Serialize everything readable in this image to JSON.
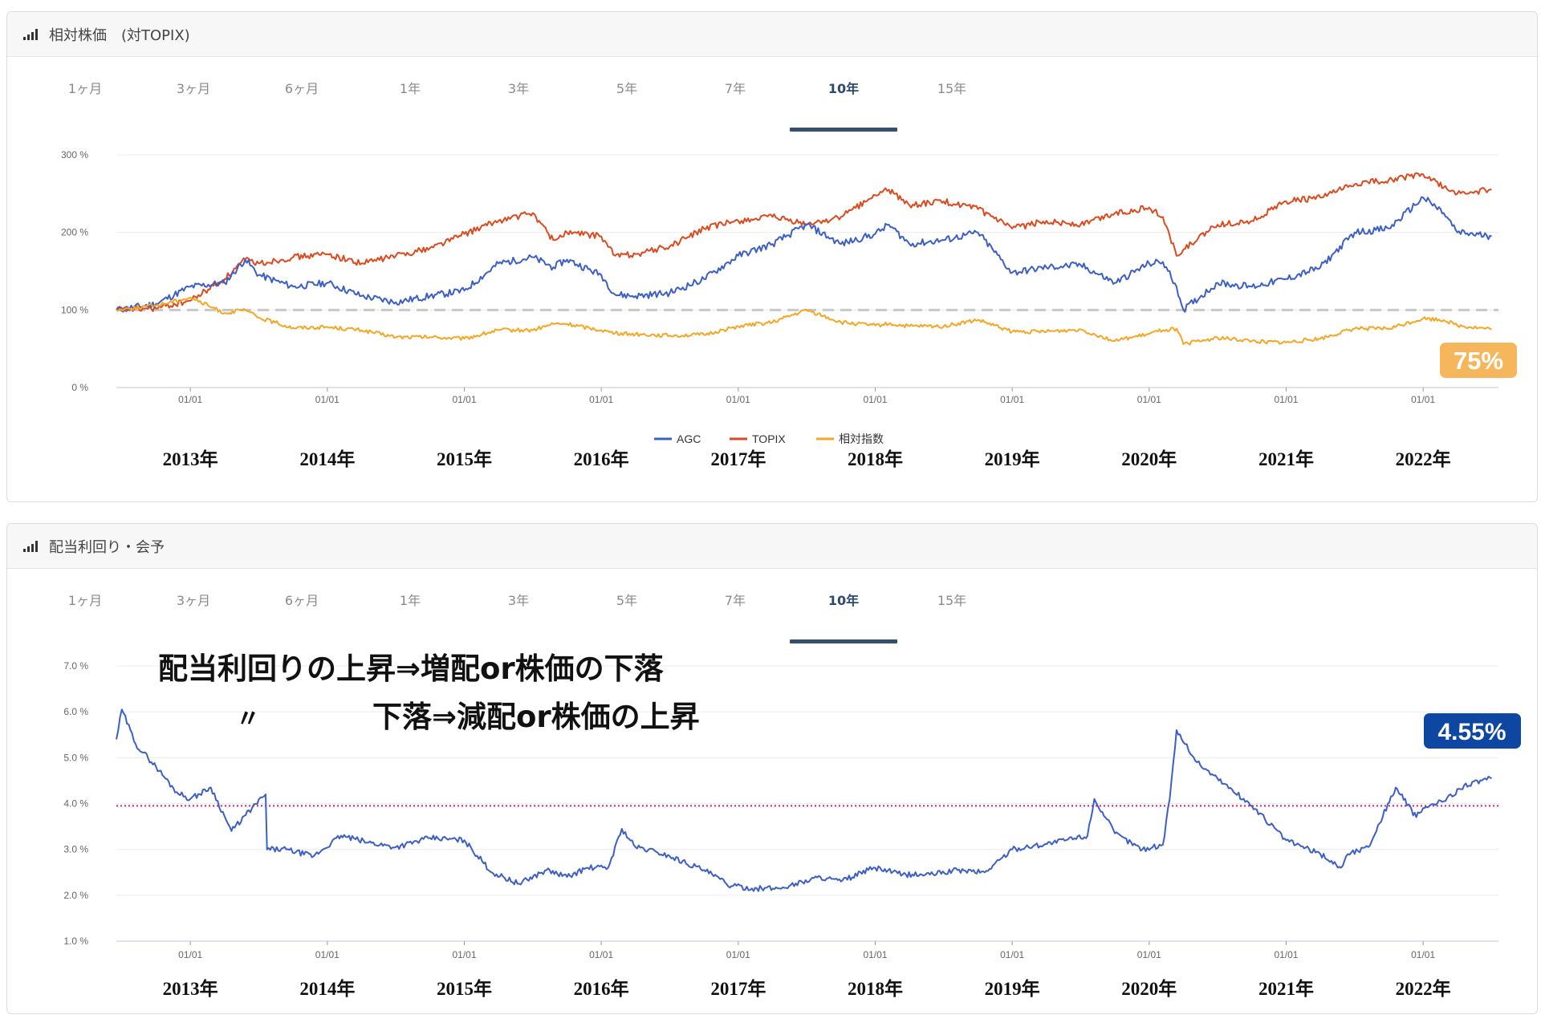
{
  "panel1": {
    "title": "相対株価　(対TOPIX)",
    "tabs": [
      "1ヶ月",
      "3ヶ月",
      "6ヶ月",
      "1年",
      "3年",
      "5年",
      "7年",
      "10年",
      "15年"
    ],
    "active_tab": 7,
    "badge": "75%",
    "badge_color": "#f6b65c"
  },
  "panel2": {
    "title": "配当利回り・会予",
    "tabs": [
      "1ヶ月",
      "3ヶ月",
      "6ヶ月",
      "1年",
      "3年",
      "5年",
      "7年",
      "10年",
      "15年"
    ],
    "active_tab": 7,
    "badge": "4.55%",
    "badge_color": "#0d47a1",
    "annotation_line1": "配当利回りの上昇⇒増配or株価の下落",
    "annotation_line2_mark": "〃",
    "annotation_line2": "下落⇒減配or株価の上昇"
  },
  "colors": {
    "agc": "#3b5fc7",
    "topix": "#dd4a1f",
    "relative": "#f5a623",
    "yield": "#3b5fc7",
    "reference_line": "#e0197c"
  },
  "chart_data": [
    {
      "type": "line",
      "title": "相対株価　(対TOPIX)",
      "x_tick_labels": [
        "01/01",
        "01/01",
        "01/01",
        "01/01",
        "01/01",
        "01/01",
        "01/01",
        "01/01",
        "01/01",
        "01/01"
      ],
      "year_labels": [
        "2013年",
        "2014年",
        "2015年",
        "2016年",
        "2017年",
        "2018年",
        "2019年",
        "2020年",
        "2021年",
        "2022年"
      ],
      "y_tick_labels": [
        "0 %",
        "100 %",
        "200 %",
        "300 %"
      ],
      "ylim": [
        0,
        300
      ],
      "x": [
        2012.46,
        2012.75,
        2013.0,
        2013.25,
        2013.4,
        2013.5,
        2013.75,
        2014.0,
        2014.25,
        2014.5,
        2014.75,
        2015.0,
        2015.25,
        2015.5,
        2015.65,
        2015.75,
        2016.0,
        2016.1,
        2016.25,
        2016.5,
        2016.75,
        2017.0,
        2017.25,
        2017.5,
        2017.75,
        2018.0,
        2018.1,
        2018.25,
        2018.5,
        2018.75,
        2019.0,
        2019.25,
        2019.5,
        2019.75,
        2020.0,
        2020.1,
        2020.2,
        2020.25,
        2020.5,
        2020.75,
        2021.0,
        2021.25,
        2021.5,
        2021.75,
        2022.0,
        2022.15,
        2022.25,
        2022.5
      ],
      "series": [
        {
          "name": "AGC",
          "values": [
            100,
            108,
            130,
            135,
            165,
            145,
            130,
            135,
            118,
            110,
            118,
            125,
            160,
            168,
            155,
            165,
            145,
            120,
            118,
            122,
            140,
            170,
            185,
            210,
            185,
            198,
            210,
            185,
            190,
            200,
            148,
            155,
            158,
            135,
            160,
            162,
            130,
            100,
            135,
            130,
            140,
            155,
            200,
            205,
            245,
            225,
            200,
            195
          ]
        },
        {
          "name": "TOPIX",
          "values": [
            100,
            102,
            112,
            140,
            165,
            160,
            168,
            172,
            160,
            170,
            180,
            198,
            215,
            225,
            190,
            200,
            195,
            170,
            172,
            182,
            205,
            215,
            220,
            210,
            220,
            248,
            255,
            235,
            240,
            230,
            205,
            215,
            210,
            225,
            232,
            220,
            170,
            178,
            210,
            215,
            240,
            245,
            262,
            268,
            275,
            258,
            250,
            255
          ]
        },
        {
          "name": "相対指数",
          "values": [
            100,
            106,
            116,
            96,
            100,
            90,
            77,
            78,
            74,
            65,
            65,
            63,
            74,
            74,
            82,
            82,
            74,
            70,
            69,
            67,
            68,
            79,
            84,
            100,
            84,
            80,
            82,
            79,
            79,
            87,
            72,
            72,
            75,
            60,
            69,
            74,
            76,
            56,
            64,
            60,
            58,
            63,
            76,
            76,
            89,
            87,
            80,
            75
          ]
        }
      ]
    },
    {
      "type": "line",
      "title": "配当利回り・会予",
      "x_tick_labels": [
        "01/01",
        "01/01",
        "01/01",
        "01/01",
        "01/01",
        "01/01",
        "01/01",
        "01/01",
        "01/01",
        "01/01"
      ],
      "year_labels": [
        "2013年",
        "2014年",
        "2015年",
        "2016年",
        "2017年",
        "2018年",
        "2019年",
        "2020年",
        "2021年",
        "2022年"
      ],
      "y_tick_labels": [
        "1.0 %",
        "2.0 %",
        "3.0 %",
        "4.0 %",
        "5.0 %",
        "6.0 %",
        "7.0 %"
      ],
      "ylim": [
        1.0,
        7.0
      ],
      "reference_line": 3.95,
      "x": [
        2012.46,
        2012.5,
        2012.6,
        2012.75,
        2012.9,
        2013.0,
        2013.15,
        2013.3,
        2013.45,
        2013.55,
        2013.56,
        2013.7,
        2013.9,
        2014.1,
        2014.3,
        2014.5,
        2014.75,
        2015.0,
        2015.2,
        2015.4,
        2015.6,
        2015.75,
        2015.9,
        2016.05,
        2016.15,
        2016.25,
        2016.4,
        2016.5,
        2016.75,
        2016.95,
        2017.1,
        2017.3,
        2017.6,
        2017.75,
        2017.95,
        2018.0,
        2018.2,
        2018.4,
        2018.6,
        2018.8,
        2019.0,
        2019.3,
        2019.55,
        2019.6,
        2019.75,
        2019.95,
        2020.1,
        2020.15,
        2020.2,
        2020.35,
        2020.75,
        2021.0,
        2021.25,
        2021.4,
        2021.45,
        2021.6,
        2021.8,
        2021.95,
        2022.0,
        2022.15,
        2022.3,
        2022.5
      ],
      "series": [
        {
          "name": "",
          "values": [
            5.4,
            6.05,
            5.3,
            4.8,
            4.25,
            4.1,
            4.35,
            3.4,
            3.9,
            4.2,
            3.0,
            3.0,
            2.85,
            3.3,
            3.15,
            3.05,
            3.25,
            3.2,
            2.5,
            2.25,
            2.55,
            2.4,
            2.6,
            2.6,
            3.45,
            3.05,
            2.95,
            2.85,
            2.55,
            2.2,
            2.15,
            2.15,
            2.4,
            2.3,
            2.55,
            2.6,
            2.45,
            2.45,
            2.55,
            2.5,
            3.0,
            3.15,
            3.3,
            4.1,
            3.35,
            3.0,
            3.1,
            4.1,
            5.6,
            4.9,
            3.95,
            3.2,
            2.9,
            2.6,
            2.9,
            3.05,
            4.35,
            3.7,
            3.9,
            4.05,
            4.4,
            4.55
          ]
        }
      ]
    }
  ]
}
